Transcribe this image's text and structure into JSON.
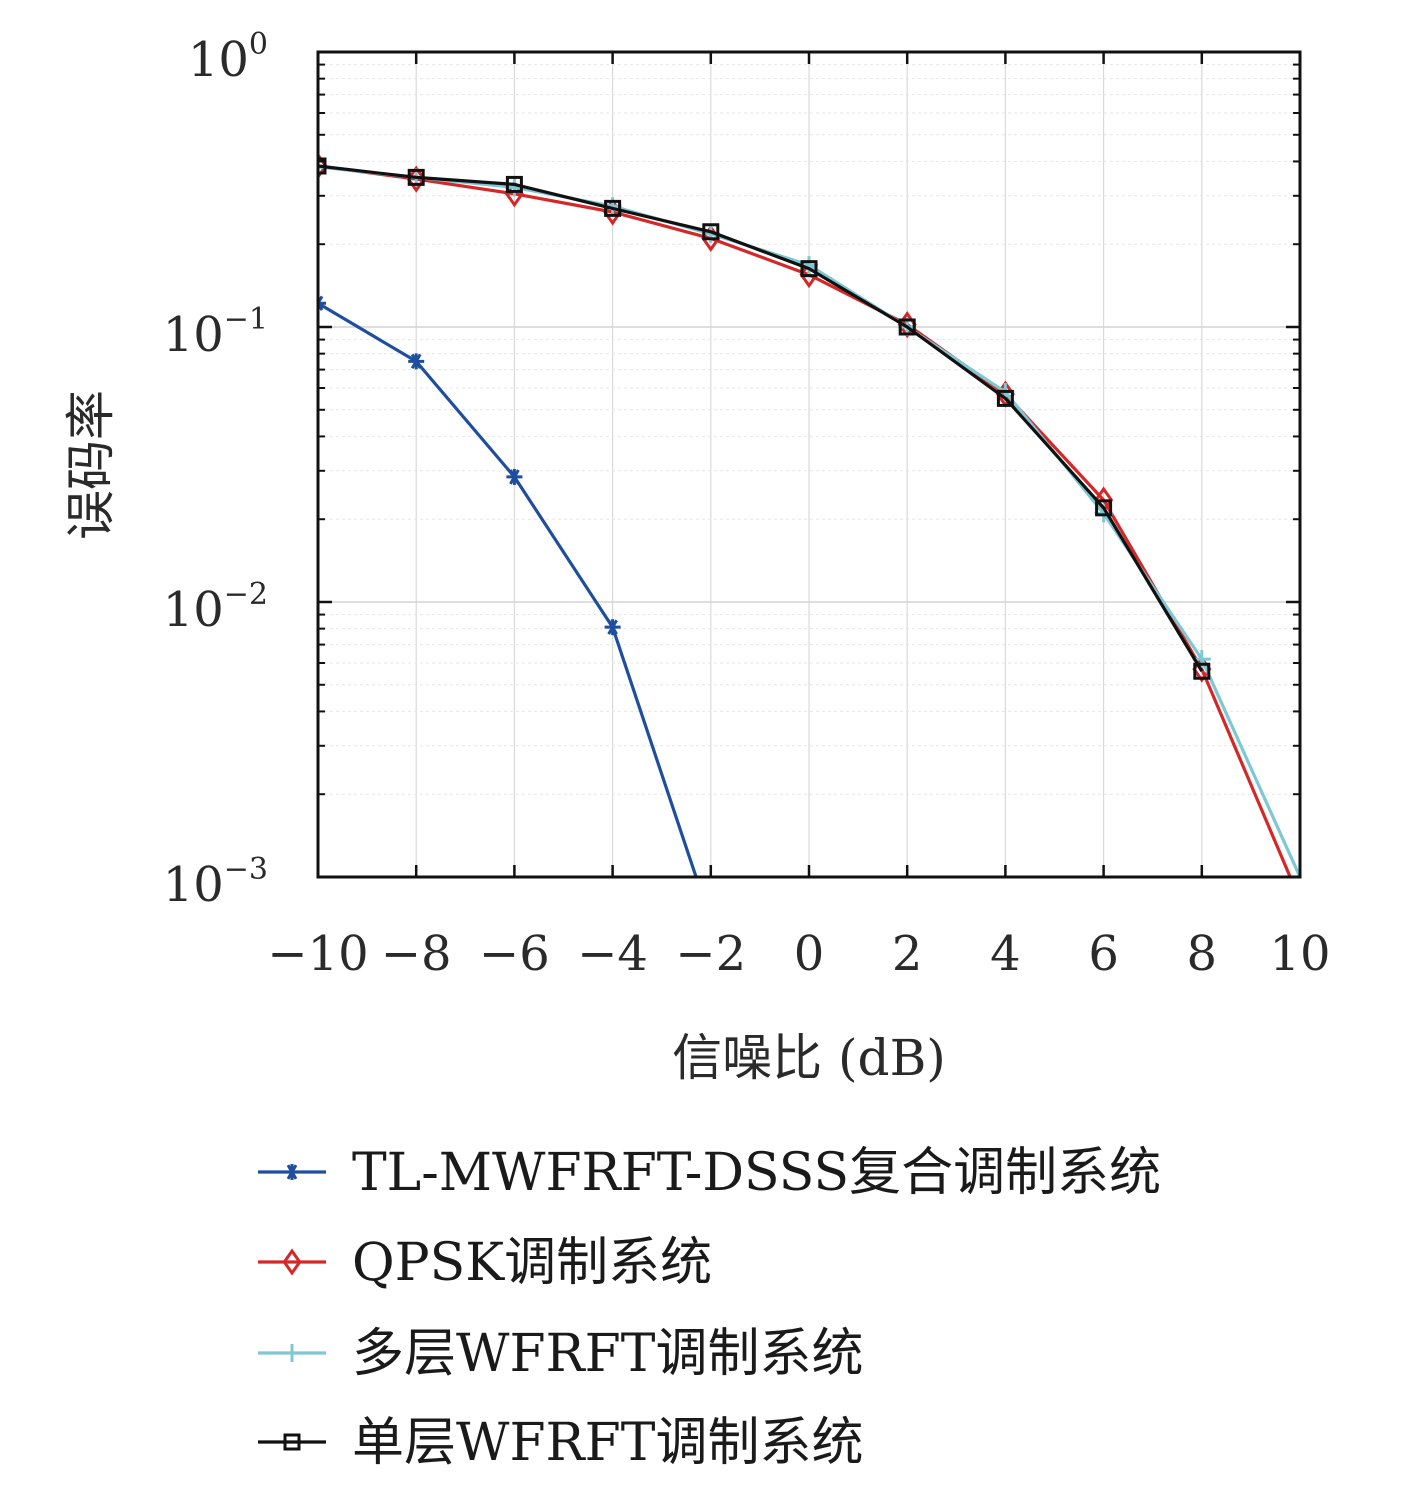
{
  "chart_data": {
    "type": "line",
    "title": "",
    "xlabel": "信噪比 (dB)",
    "ylabel": "误码率",
    "xlim": [
      -10,
      10
    ],
    "ylim": [
      0.001,
      1
    ],
    "yscale": "log",
    "grid": true,
    "legend_position": "bottom",
    "x_ticks": [
      "−10",
      "−8",
      "−6",
      "−4",
      "−2",
      "0",
      "2",
      "4",
      "6",
      "8",
      "10"
    ],
    "y_ticks": [
      {
        "base": "10",
        "exp": "0"
      },
      {
        "base": "10",
        "exp": "−1"
      },
      {
        "base": "10",
        "exp": "−2"
      },
      {
        "base": "10",
        "exp": "−3"
      }
    ],
    "x": [
      -10,
      -8,
      -6,
      -4,
      -2,
      0,
      2,
      4,
      6,
      8,
      10
    ],
    "series": [
      {
        "name": "TL-MWFRFT-DSSS复合调制系统",
        "color": "#1f4e9e",
        "marker": "asterisk",
        "points": [
          [
            -10,
            0.122
          ],
          [
            -8,
            0.075
          ],
          [
            -6,
            0.0285
          ],
          [
            -4,
            0.0081
          ],
          [
            -2.3,
            0.001
          ]
        ]
      },
      {
        "name": "QPSK调制系统",
        "color": "#d62728",
        "marker": "diamond",
        "points": [
          [
            -10,
            0.385
          ],
          [
            -8,
            0.345
          ],
          [
            -6,
            0.305
          ],
          [
            -4,
            0.262
          ],
          [
            -2,
            0.21
          ],
          [
            0,
            0.155
          ],
          [
            2,
            0.102
          ],
          [
            4,
            0.057
          ],
          [
            6,
            0.0235
          ],
          [
            8,
            0.0057
          ],
          [
            9.8,
            0.001
          ]
        ]
      },
      {
        "name": "多层WFRFT调制系统",
        "color": "#7ec8d3",
        "marker": "plus",
        "points": [
          [
            -10,
            0.382
          ],
          [
            -8,
            0.35
          ],
          [
            -6,
            0.322
          ],
          [
            -4,
            0.275
          ],
          [
            -2,
            0.218
          ],
          [
            0,
            0.168
          ],
          [
            2,
            0.1
          ],
          [
            4,
            0.058
          ],
          [
            6,
            0.021
          ],
          [
            8,
            0.0062
          ],
          [
            10,
            0.001
          ]
        ]
      },
      {
        "name": "单层WFRFT调制系统",
        "color": "#111111",
        "marker": "square",
        "points": [
          [
            -10,
            0.385
          ],
          [
            -8,
            0.35
          ],
          [
            -6,
            0.33
          ],
          [
            -4,
            0.27
          ],
          [
            -2,
            0.222
          ],
          [
            0,
            0.163
          ],
          [
            2,
            0.1
          ],
          [
            4,
            0.055
          ],
          [
            6,
            0.022
          ],
          [
            8,
            0.0056
          ]
        ]
      }
    ]
  }
}
